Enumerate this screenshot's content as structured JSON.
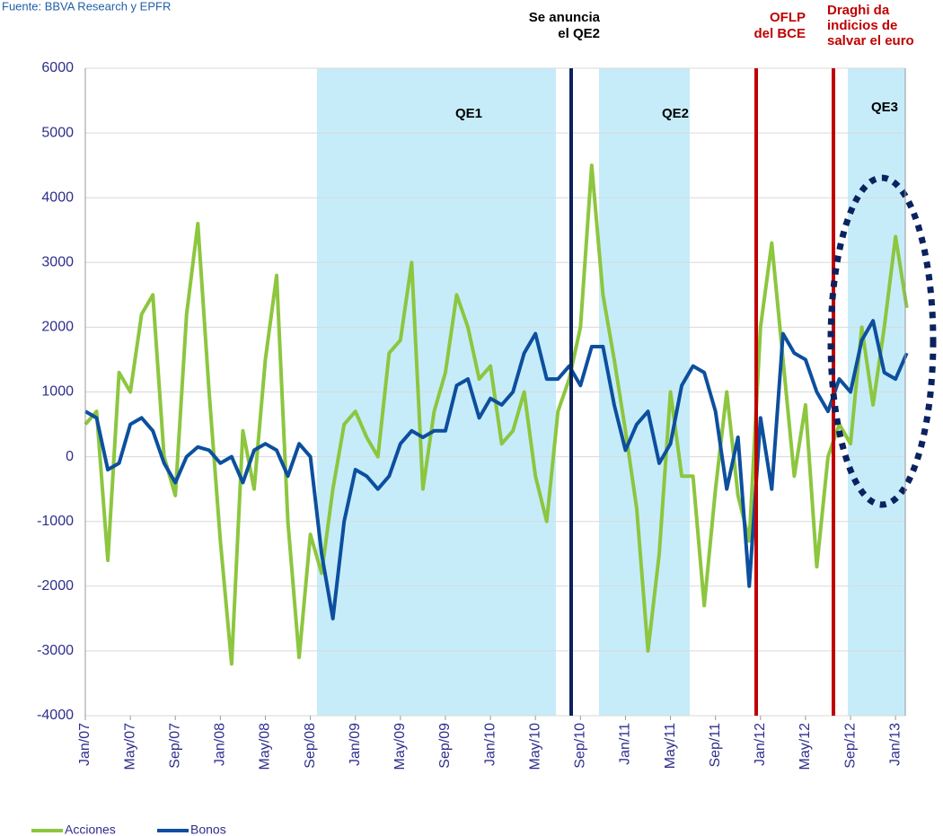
{
  "source": "Fuente: BBVA Research y EPFR",
  "annotations": {
    "qe2_announce": [
      "Se anuncia",
      "el QE2"
    ],
    "oflp": [
      "OFLP",
      "del BCE"
    ],
    "draghi": [
      "Draghi da",
      "indicios de",
      "salvar el euro"
    ],
    "qe1": "QE1",
    "qe2": "QE2",
    "qe3": "QE3"
  },
  "chart_data": {
    "type": "line",
    "categories": [
      "Jan/07",
      null,
      null,
      null,
      "May/07",
      null,
      null,
      null,
      "Sep/07",
      null,
      null,
      null,
      "Jan/08",
      null,
      null,
      null,
      "May/08",
      null,
      null,
      null,
      "Sep/08",
      null,
      null,
      null,
      "Jan/09",
      null,
      null,
      null,
      "May/09",
      null,
      null,
      null,
      "Sep/09",
      null,
      null,
      null,
      "Jan/10",
      null,
      null,
      null,
      "May/10",
      null,
      null,
      null,
      "Sep/10",
      null,
      null,
      null,
      "Jan/11",
      null,
      null,
      null,
      "May/11",
      null,
      null,
      null,
      "Sep/11",
      null,
      null,
      null,
      "Jan/12",
      null,
      null,
      null,
      "May/12",
      null,
      null,
      null,
      "Sep/12",
      null,
      null,
      null,
      "Jan/13",
      null
    ],
    "series": [
      {
        "name": "Acciones",
        "color": "#8dc63f",
        "values": [
          500,
          700,
          -1600,
          1300,
          1000,
          2200,
          2500,
          0,
          -600,
          2200,
          3600,
          1000,
          -1300,
          -3200,
          400,
          -500,
          1500,
          2800,
          -1000,
          -3100,
          -1200,
          -1800,
          -500,
          500,
          700,
          300,
          0,
          1600,
          1800,
          3000,
          -500,
          700,
          1300,
          2500,
          2000,
          1200,
          1400,
          200,
          400,
          1000,
          -300,
          -1000,
          700,
          1200,
          2000,
          4500,
          2500,
          1500,
          400,
          -800,
          -3000,
          -1500,
          1000,
          -300,
          -300,
          -2300,
          -500,
          1000,
          -600,
          -1300,
          2000,
          3300,
          1500,
          -300,
          800,
          -1700,
          0,
          500,
          200,
          2000,
          800,
          2000,
          3400,
          2300
        ]
      },
      {
        "name": "Bonos",
        "color": "#0d4f9e",
        "values": [
          700,
          600,
          -200,
          -100,
          500,
          600,
          400,
          -100,
          -400,
          0,
          150,
          100,
          -100,
          0,
          -400,
          100,
          200,
          100,
          -300,
          200,
          0,
          -1500,
          -2500,
          -1000,
          -200,
          -300,
          -500,
          -300,
          200,
          400,
          300,
          400,
          400,
          1100,
          1200,
          600,
          900,
          800,
          1000,
          1600,
          1900,
          1200,
          1200,
          1400,
          1100,
          1700,
          1700,
          800,
          100,
          500,
          700,
          -100,
          200,
          1100,
          1400,
          1300,
          700,
          -500,
          300,
          -2000,
          600,
          -500,
          1900,
          1600,
          1500,
          1000,
          700,
          1200,
          1000,
          1800,
          2100,
          1300,
          1200,
          1600
        ]
      }
    ],
    "ylim": [
      -4000,
      6000
    ],
    "yticks": [
      -4000,
      -3000,
      -2000,
      -1000,
      0,
      1000,
      2000,
      3000,
      4000,
      5000,
      6000
    ],
    "grid": true
  }
}
